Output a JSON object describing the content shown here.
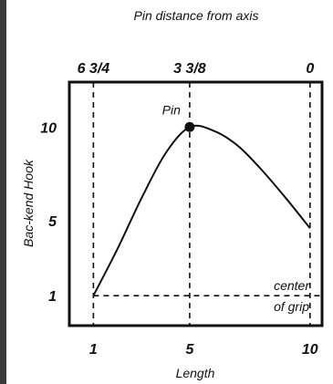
{
  "chart_data": {
    "type": "line",
    "top_axis_title": "Pin distance from axis",
    "xlabel": "Length",
    "ylabel": "Bac-kend Hook",
    "x_ticks": [
      1,
      5,
      10
    ],
    "x_tick_labels": [
      "1",
      "5",
      "10"
    ],
    "y_ticks": [
      1,
      5,
      10
    ],
    "y_tick_labels": [
      "1",
      "5",
      "10"
    ],
    "top_ticks": [
      {
        "x": 1,
        "label": "6 3/4"
      },
      {
        "x": 5,
        "label": "3 3/8"
      },
      {
        "x": 10,
        "label": "0"
      }
    ],
    "xlim": [
      0,
      10.5
    ],
    "ylim": [
      -0.6,
      12.4
    ],
    "series": [
      {
        "values": [
          [
            1,
            1.0
          ],
          [
            2,
            3.5
          ],
          [
            3,
            6.2
          ],
          [
            4,
            8.6
          ],
          [
            5,
            10.0
          ],
          [
            6,
            9.8
          ],
          [
            7,
            9.0
          ],
          [
            8,
            7.7
          ],
          [
            9,
            6.2
          ],
          [
            10,
            4.6
          ]
        ]
      }
    ],
    "pin": {
      "x": 5,
      "y": 10,
      "label": "Pin"
    },
    "center_of_grip": {
      "y": 1,
      "label_line1": "center",
      "label_line2": "of grip"
    },
    "grid": false
  }
}
